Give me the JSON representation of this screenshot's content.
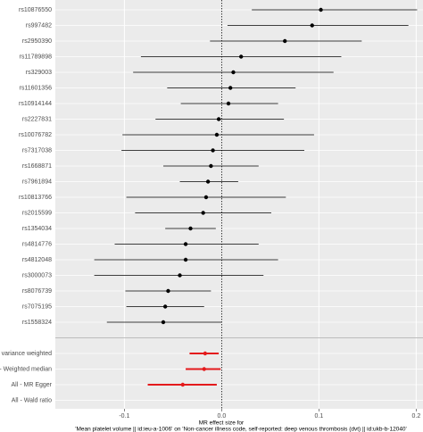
{
  "chart_data": {
    "type": "forest",
    "xlabel": [
      "MR effect size for",
      "'Mean platelet volume || id:ieu-a-1006' on 'Non-cancer illness code, self-reported: deep venous thrombosis (dvt) || id:ukb-b-12040'"
    ],
    "xlim": [
      -0.171,
      0.207
    ],
    "xticks": [
      -0.1,
      {
        "value": 0,
        "label": "0.0"
      },
      0.1,
      0.2
    ],
    "grid": true,
    "groups": [
      {
        "color": "#000000",
        "categories": [
          "rs10876550",
          "rs997482",
          "rs2950390",
          "rs11789898",
          "rs329003",
          "rs11601356",
          "rs10914144",
          "rs2227831",
          "rs10076782",
          "rs7317038",
          "rs1668871",
          "rs7961894",
          "rs10813766",
          "rs2015599",
          "rs1354034",
          "rs4814776",
          "rs4812048",
          "rs3000073",
          "rs8076739",
          "rs7075195",
          "rs1558324"
        ],
        "values": [
          0.102,
          0.093,
          0.065,
          0.02,
          0.012,
          0.009,
          0.007,
          -0.003,
          -0.005,
          -0.009,
          -0.011,
          -0.014,
          -0.016,
          -0.019,
          -0.032,
          -0.037,
          -0.037,
          -0.043,
          -0.055,
          -0.058,
          -0.06
        ],
        "lower": [
          0.031,
          0.006,
          -0.012,
          -0.083,
          -0.091,
          -0.056,
          -0.042,
          -0.068,
          -0.102,
          -0.103,
          -0.06,
          -0.043,
          -0.098,
          -0.089,
          -0.058,
          -0.11,
          -0.131,
          -0.131,
          -0.099,
          -0.098,
          -0.118
        ],
        "upper": [
          0.201,
          0.192,
          0.144,
          0.123,
          0.115,
          0.076,
          0.058,
          0.064,
          0.095,
          0.085,
          0.038,
          0.017,
          0.066,
          0.051,
          -0.006,
          0.038,
          0.058,
          0.043,
          -0.011,
          -0.018,
          0.0
        ]
      },
      {
        "color": "#e41a1c",
        "categories": [
          "All - Inverse variance weighted",
          "All - Weighted median",
          "All - MR Egger",
          "All - Wald ratio"
        ],
        "values": [
          -0.017,
          -0.018,
          -0.04,
          null
        ],
        "lower": [
          -0.033,
          -0.037,
          -0.076,
          null
        ],
        "upper": [
          -0.003,
          -0.001,
          -0.005,
          null
        ]
      }
    ]
  }
}
